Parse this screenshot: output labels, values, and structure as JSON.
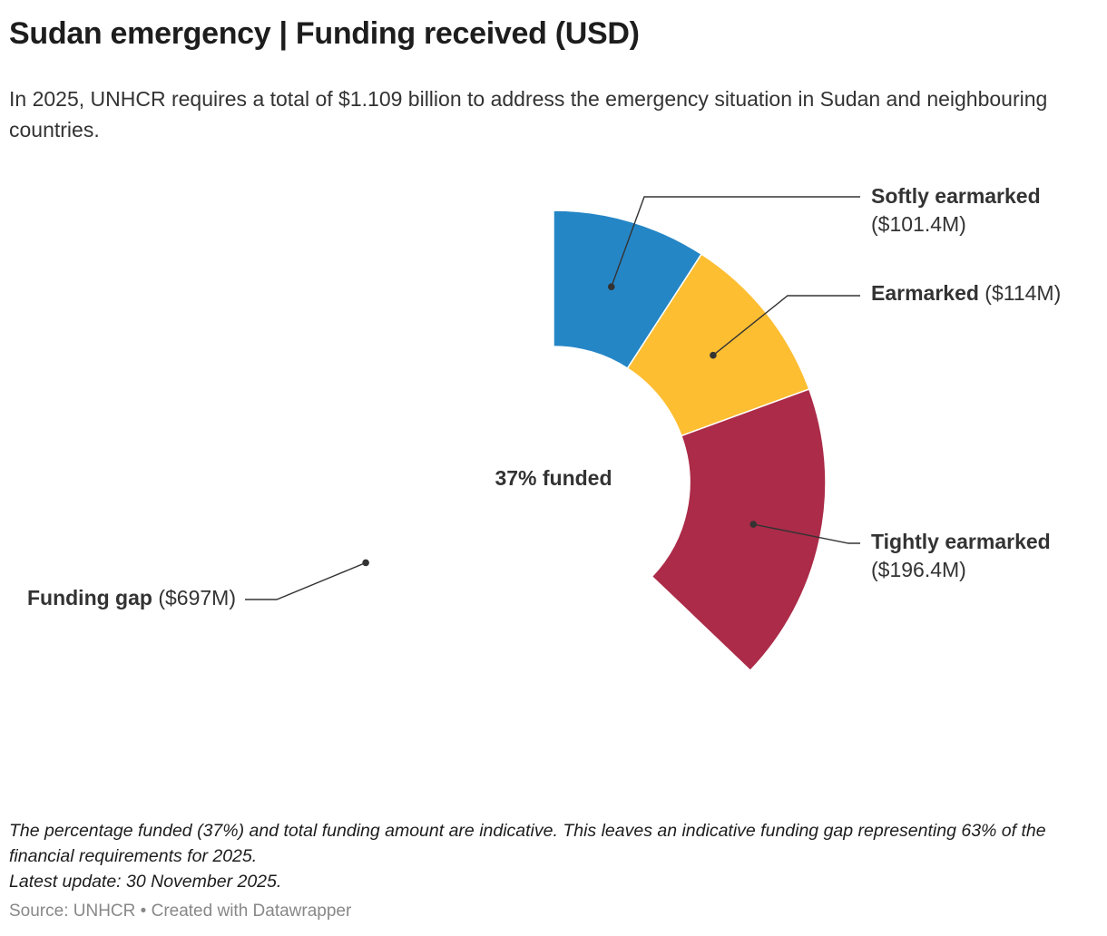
{
  "title": "Sudan emergency | Funding received (USD)",
  "subtitle": "In 2025, UNHCR requires a total of $1.109 billion to address the emergency situation in Sudan and neighbouring countries.",
  "notes": {
    "line1": "The percentage funded (37%) and total funding amount are indicative. This leaves an indicative funding gap representing 63% of the financial requirements for 2025.",
    "line2": "Latest update: 30 November 2025."
  },
  "footer": {
    "source": "Source: UNHCR",
    "separator": "•",
    "credit": "Created with Datawrapper"
  },
  "chart_data": {
    "type": "pie",
    "variant": "donut",
    "center_label": "37% funded",
    "legend": "none",
    "slices": [
      {
        "name": "Softly earmarked",
        "value_label": "($101.4M)",
        "value": 101.4,
        "color": "#2586c6",
        "visible": true
      },
      {
        "name": "Earmarked",
        "value_label": "($114M)",
        "value": 114,
        "color": "#fdbe32",
        "visible": true
      },
      {
        "name": "Tightly earmarked",
        "value_label": "($196.4M)",
        "value": 196.4,
        "color": "#ab2b48",
        "visible": true
      },
      {
        "name": "Funding gap",
        "value_label": "($697M)",
        "value": 697,
        "color": "#ffffff",
        "visible": false
      }
    ]
  }
}
